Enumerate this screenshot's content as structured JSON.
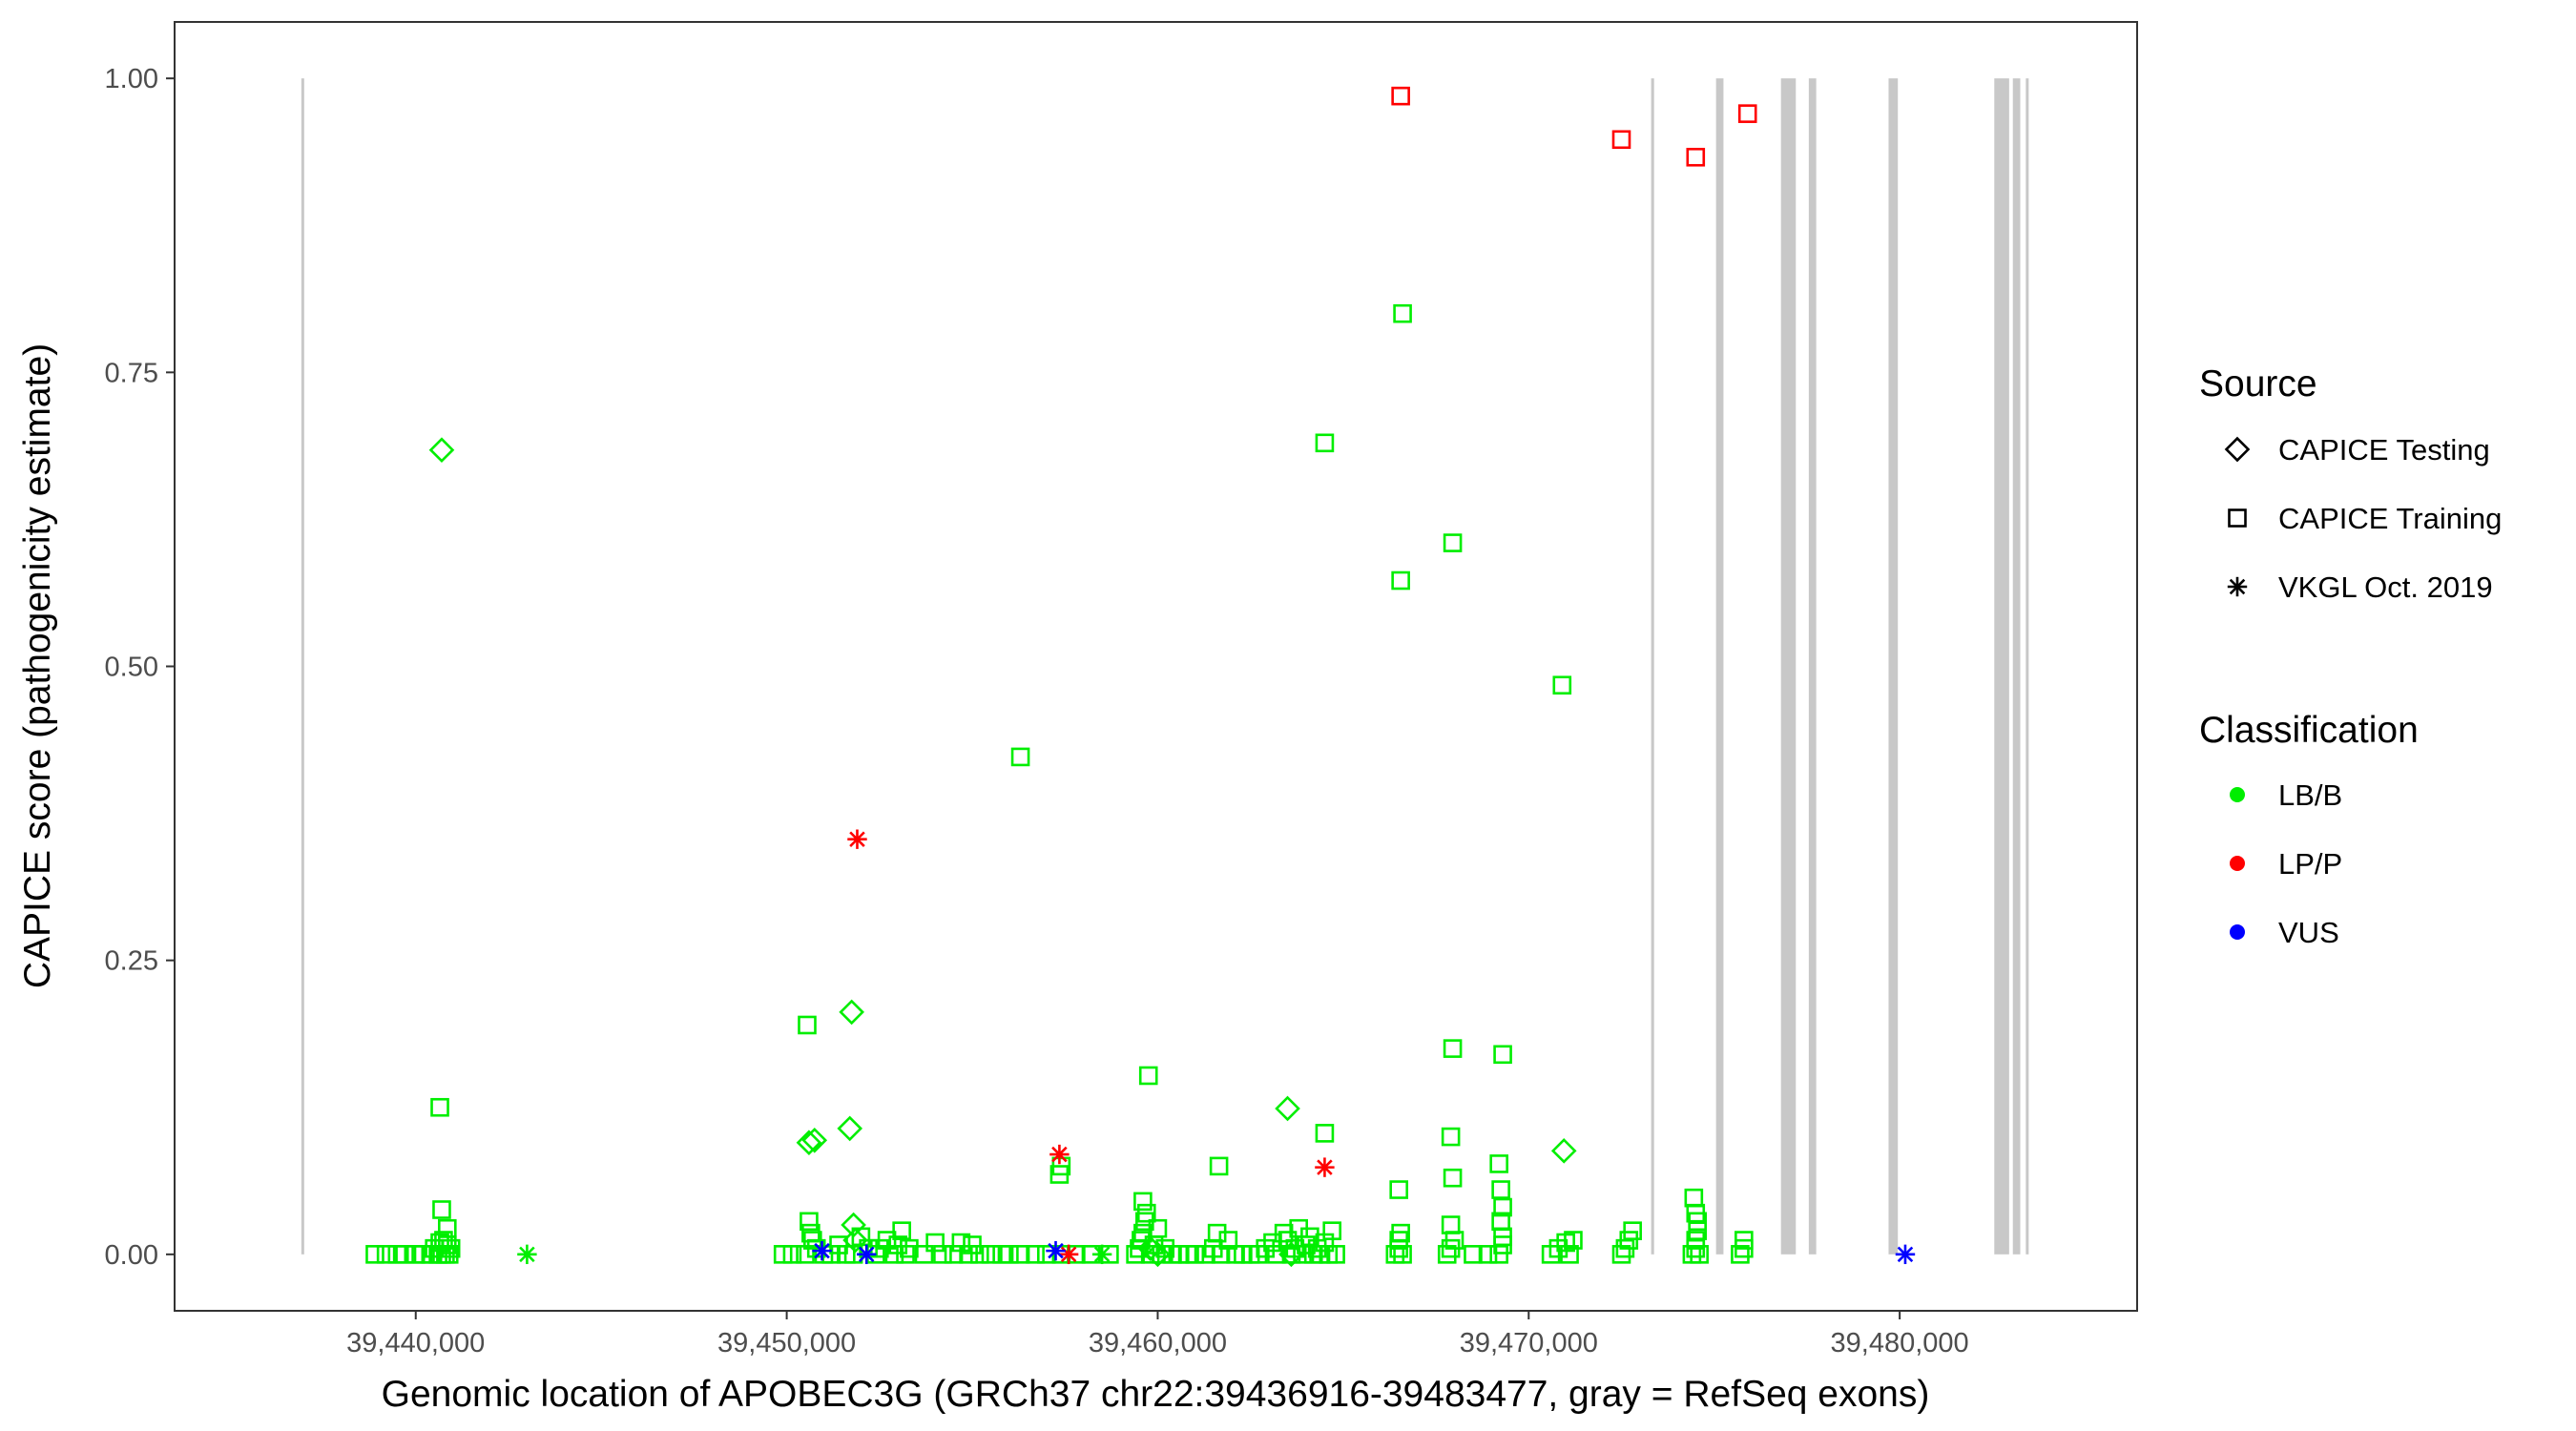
{
  "chart_data": {
    "type": "scatter",
    "xlabel": "Genomic location of APOBEC3G (GRCh37 chr22:39436916-39483477, gray = RefSeq exons)",
    "ylabel": "CAPICE score (pathogenicity estimate)",
    "xlim": [
      39433500,
      39486400
    ],
    "ylim": [
      -0.048,
      1.048
    ],
    "x_ticks": [
      39440000,
      39450000,
      39460000,
      39470000,
      39480000
    ],
    "x_tick_labels": [
      "39,440,000",
      "39,450,000",
      "39,460,000",
      "39,470,000",
      "39,480,000"
    ],
    "y_ticks": [
      0,
      0.25,
      0.5,
      0.75,
      1.0
    ],
    "y_tick_labels": [
      "0.00",
      "0.25",
      "0.50",
      "0.75",
      "1.00"
    ],
    "grid": false,
    "legend_position": "right",
    "exons": [
      [
        39436916,
        39436990
      ],
      [
        39473300,
        39473380
      ],
      [
        39475050,
        39475250
      ],
      [
        39476800,
        39477200
      ],
      [
        39477550,
        39477750
      ],
      [
        39479700,
        39479950
      ],
      [
        39482550,
        39482950
      ],
      [
        39483050,
        39483250
      ],
      [
        39483400,
        39483477
      ]
    ],
    "legend": {
      "source_title": "Source",
      "source_items": [
        {
          "label": "CAPICE Testing",
          "shape": "diamond"
        },
        {
          "label": "CAPICE Training",
          "shape": "square"
        },
        {
          "label": "VKGL Oct. 2019",
          "shape": "asterisk"
        }
      ],
      "class_title": "Classification",
      "class_items": [
        {
          "label": "LB/B",
          "color": "#00ee00"
        },
        {
          "label": "LP/P",
          "color": "#ff0000"
        },
        {
          "label": "VUS",
          "color": "#0000ff"
        }
      ]
    },
    "colors": {
      "LB/B": "#00ee00",
      "LP/P": "#ff0000",
      "VUS": "#0000ff",
      "exon": "#c8c8c8"
    },
    "series": [
      {
        "source": "CAPICE Training",
        "classification": "LB/B",
        "points": [
          [
            39438900,
            0.0
          ],
          [
            39439200,
            0.0
          ],
          [
            39439500,
            0.0
          ],
          [
            39439700,
            0.0
          ],
          [
            39440000,
            0.0
          ],
          [
            39440200,
            0.0
          ],
          [
            39440400,
            0.0
          ],
          [
            39440500,
            0.005
          ],
          [
            39440600,
            0.0
          ],
          [
            39440650,
            0.01
          ],
          [
            39440700,
            0.0
          ],
          [
            39440750,
            0.012
          ],
          [
            39440800,
            0.0
          ],
          [
            39440850,
            0.008
          ],
          [
            39440900,
            0.0
          ],
          [
            39440950,
            0.005
          ],
          [
            39440650,
            0.125
          ],
          [
            39440700,
            0.038
          ],
          [
            39440850,
            0.022
          ],
          [
            39449900,
            0.0
          ],
          [
            39450150,
            0.0
          ],
          [
            39450500,
            0.0
          ],
          [
            39450600,
            0.028
          ],
          [
            39450650,
            0.018
          ],
          [
            39450700,
            0.012
          ],
          [
            39450800,
            0.005
          ],
          [
            39451000,
            0.0
          ],
          [
            39451200,
            0.0
          ],
          [
            39451400,
            0.008
          ],
          [
            39451600,
            0.0
          ],
          [
            39451800,
            0.0
          ],
          [
            39452000,
            0.015
          ],
          [
            39452200,
            0.005
          ],
          [
            39452400,
            0.0
          ],
          [
            39452500,
            0.005
          ],
          [
            39452700,
            0.012
          ],
          [
            39452900,
            0.0
          ],
          [
            39453000,
            0.008
          ],
          [
            39453100,
            0.02
          ],
          [
            39453200,
            0.0
          ],
          [
            39453300,
            0.005
          ],
          [
            39450550,
            0.195
          ],
          [
            39453700,
            0.0
          ],
          [
            39454000,
            0.01
          ],
          [
            39454200,
            0.0
          ],
          [
            39454500,
            0.0
          ],
          [
            39454700,
            0.01
          ],
          [
            39454900,
            0.0
          ],
          [
            39455000,
            0.008
          ],
          [
            39455200,
            0.0
          ],
          [
            39455500,
            0.0
          ],
          [
            39455800,
            0.0
          ],
          [
            39456000,
            0.0
          ],
          [
            39456300,
            0.0
          ],
          [
            39456700,
            0.0
          ],
          [
            39457000,
            0.0
          ],
          [
            39456300,
            0.423
          ],
          [
            39457400,
            0.0
          ],
          [
            39457800,
            0.0
          ],
          [
            39458200,
            0.0
          ],
          [
            39458700,
            0.0
          ],
          [
            39457350,
            0.068
          ],
          [
            39457400,
            0.075
          ],
          [
            39459400,
            0.0
          ],
          [
            39459500,
            0.005
          ],
          [
            39459550,
            0.012
          ],
          [
            39459600,
            0.018
          ],
          [
            39459650,
            0.028
          ],
          [
            39459700,
            0.035
          ],
          [
            39459600,
            0.045
          ],
          [
            39459800,
            0.0
          ],
          [
            39459900,
            0.008
          ],
          [
            39460000,
            0.022
          ],
          [
            39460100,
            0.0
          ],
          [
            39460200,
            0.005
          ],
          [
            39459750,
            0.152
          ],
          [
            39460400,
            0.0
          ],
          [
            39460600,
            0.0
          ],
          [
            39460800,
            0.0
          ],
          [
            39461000,
            0.0
          ],
          [
            39461300,
            0.0
          ],
          [
            39461500,
            0.005
          ],
          [
            39461700,
            0.0
          ],
          [
            39461900,
            0.012
          ],
          [
            39462100,
            0.0
          ],
          [
            39461600,
            0.018
          ],
          [
            39461650,
            0.075
          ],
          [
            39462300,
            0.0
          ],
          [
            39462500,
            0.0
          ],
          [
            39462700,
            0.0
          ],
          [
            39462900,
            0.005
          ],
          [
            39463100,
            0.01
          ],
          [
            39463200,
            0.0
          ],
          [
            39463400,
            0.018
          ],
          [
            39463500,
            0.012
          ],
          [
            39463600,
            0.0
          ],
          [
            39463700,
            0.005
          ],
          [
            39463800,
            0.022
          ],
          [
            39463900,
            0.0
          ],
          [
            39464000,
            0.008
          ],
          [
            39464100,
            0.015
          ],
          [
            39464200,
            0.0
          ],
          [
            39464300,
            0.005
          ],
          [
            39464400,
            0.0
          ],
          [
            39464500,
            0.01
          ],
          [
            39464600,
            0.0
          ],
          [
            39464700,
            0.02
          ],
          [
            39464800,
            0.0
          ],
          [
            39464500,
            0.103
          ],
          [
            39464500,
            0.69
          ],
          [
            39466400,
            0.0
          ],
          [
            39466500,
            0.005
          ],
          [
            39466500,
            0.012
          ],
          [
            39466550,
            0.018
          ],
          [
            39466600,
            0.0
          ],
          [
            39466500,
            0.055
          ],
          [
            39466550,
            0.573
          ],
          [
            39466600,
            0.8
          ],
          [
            39467800,
            0.0
          ],
          [
            39467900,
            0.005
          ],
          [
            39468000,
            0.012
          ],
          [
            39467900,
            0.025
          ],
          [
            39467950,
            0.065
          ],
          [
            39467900,
            0.1
          ],
          [
            39467950,
            0.175
          ],
          [
            39467950,
            0.605
          ],
          [
            39468500,
            0.0
          ],
          [
            39468900,
            0.0
          ],
          [
            39469200,
            0.0
          ],
          [
            39469300,
            0.008
          ],
          [
            39469300,
            0.015
          ],
          [
            39469250,
            0.028
          ],
          [
            39469300,
            0.04
          ],
          [
            39469250,
            0.055
          ],
          [
            39469200,
            0.077
          ],
          [
            39469300,
            0.17
          ],
          [
            39470600,
            0.0
          ],
          [
            39470800,
            0.005
          ],
          [
            39471000,
            0.01
          ],
          [
            39471100,
            0.0
          ],
          [
            39471200,
            0.012
          ],
          [
            39470900,
            0.484
          ],
          [
            39472500,
            0.0
          ],
          [
            39472600,
            0.005
          ],
          [
            39472700,
            0.012
          ],
          [
            39472800,
            0.02
          ],
          [
            39474400,
            0.0
          ],
          [
            39474500,
            0.005
          ],
          [
            39474500,
            0.012
          ],
          [
            39474550,
            0.02
          ],
          [
            39474550,
            0.028
          ],
          [
            39474500,
            0.035
          ],
          [
            39474450,
            0.048
          ],
          [
            39474600,
            0.0
          ],
          [
            39475700,
            0.0
          ],
          [
            39475800,
            0.005
          ],
          [
            39475800,
            0.012
          ]
        ]
      },
      {
        "source": "CAPICE Training",
        "classification": "LP/P",
        "points": [
          [
            39466550,
            0.985
          ],
          [
            39472500,
            0.948
          ],
          [
            39474500,
            0.933
          ],
          [
            39475900,
            0.97
          ]
        ]
      },
      {
        "source": "CAPICE Testing",
        "classification": "LB/B",
        "points": [
          [
            39440700,
            0.684
          ],
          [
            39450600,
            0.095
          ],
          [
            39450750,
            0.097
          ],
          [
            39451700,
            0.107
          ],
          [
            39451750,
            0.206
          ],
          [
            39451800,
            0.025
          ],
          [
            39451850,
            0.012
          ],
          [
            39459800,
            0.005
          ],
          [
            39460000,
            0.0
          ],
          [
            39463500,
            0.124
          ],
          [
            39463600,
            0.0
          ],
          [
            39470950,
            0.088
          ]
        ]
      },
      {
        "source": "VKGL Oct. 2019",
        "classification": "LB/B",
        "points": [
          [
            39443000,
            0.0
          ],
          [
            39458500,
            0.0
          ]
        ]
      },
      {
        "source": "VKGL Oct. 2019",
        "classification": "LP/P",
        "points": [
          [
            39451900,
            0.353
          ],
          [
            39457350,
            0.085
          ],
          [
            39457600,
            0.0
          ],
          [
            39464500,
            0.074
          ]
        ]
      },
      {
        "source": "VKGL Oct. 2019",
        "classification": "VUS",
        "points": [
          [
            39450950,
            0.003
          ],
          [
            39452150,
            0.0
          ],
          [
            39457250,
            0.003
          ],
          [
            39480150,
            0.0
          ]
        ]
      }
    ]
  }
}
